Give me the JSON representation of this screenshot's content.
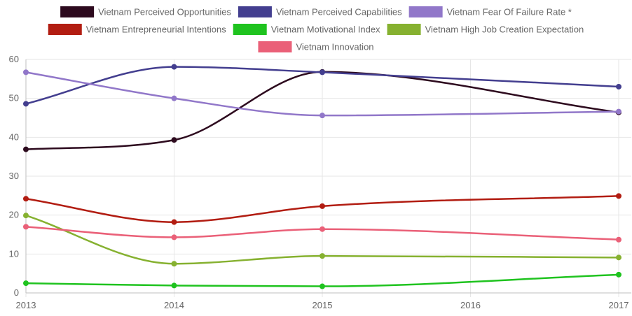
{
  "chart_data": {
    "type": "line",
    "title": "",
    "xlabel": "",
    "ylabel": "",
    "x": [
      "2013",
      "2014",
      "2015",
      "2016",
      "2017"
    ],
    "ylim": [
      0,
      60
    ],
    "yticks": [
      "0",
      "10",
      "20",
      "30",
      "40",
      "50",
      "60"
    ],
    "grid": true,
    "legend_position": "top",
    "series": [
      {
        "name": "Vietnam Perceived Opportunities",
        "color": "#2d0a1e",
        "values": [
          36.9,
          39.3,
          56.8,
          null,
          46.4
        ]
      },
      {
        "name": "Vietnam Perceived Capabilities",
        "color": "#433e8f",
        "values": [
          48.6,
          58.1,
          56.7,
          null,
          53.0
        ]
      },
      {
        "name": "Vietnam Fear Of Failure Rate *",
        "color": "#9177c9",
        "values": [
          56.7,
          50.0,
          45.6,
          null,
          46.6
        ]
      },
      {
        "name": "Vietnam Entrepreneurial Intentions",
        "color": "#b21d12",
        "values": [
          24.2,
          18.2,
          22.3,
          null,
          24.9
        ]
      },
      {
        "name": "Vietnam Motivational Index",
        "color": "#1fc31f",
        "values": [
          2.5,
          1.9,
          1.7,
          null,
          4.7
        ]
      },
      {
        "name": "Vietnam High Job Creation Expectation",
        "color": "#86b130",
        "values": [
          19.9,
          7.5,
          9.5,
          null,
          9.1
        ]
      },
      {
        "name": "Vietnam Innovation",
        "color": "#ea6078",
        "values": [
          17.0,
          14.3,
          16.4,
          null,
          13.7
        ]
      }
    ]
  }
}
